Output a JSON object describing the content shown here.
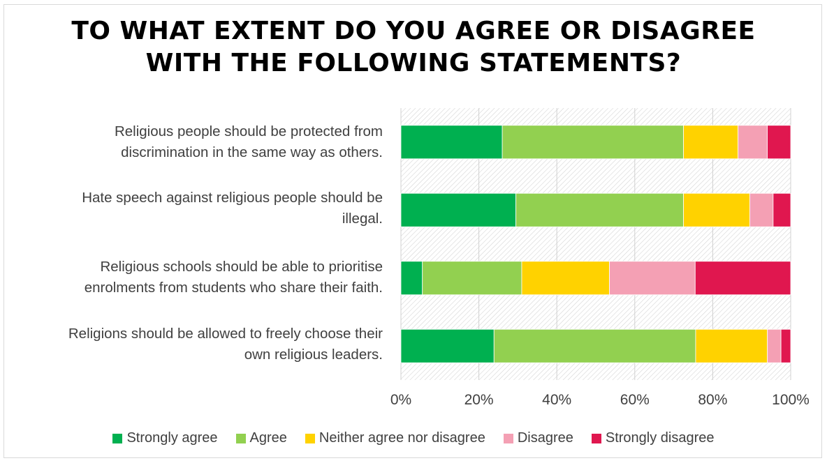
{
  "chart_data": {
    "type": "bar",
    "orientation": "horizontal",
    "stacked": "percent",
    "title_lines": [
      "To what extent do you agree or disagree",
      "with the following statements?"
    ],
    "categories": [
      [
        "Religious people should be protected from",
        "discrimination in the same way as others."
      ],
      [
        "Hate speech against religious people should be",
        "illegal."
      ],
      [
        "Religious schools should be able to prioritise",
        "enrolments from students who share their faith."
      ],
      [
        "Religions should be allowed to freely choose their",
        "own religious leaders."
      ]
    ],
    "series": [
      {
        "name": "Strongly agree",
        "color": "#00b050",
        "values": [
          26,
          29.5,
          5.5,
          24
        ]
      },
      {
        "name": "Agree",
        "color": "#92d050",
        "values": [
          46.5,
          43,
          25.5,
          52
        ]
      },
      {
        "name": "Neither agree nor disagree",
        "color": "#ffd200",
        "values": [
          14,
          17,
          22.5,
          18.5
        ]
      },
      {
        "name": "Disagree",
        "color": "#f4a0b4",
        "values": [
          7.5,
          6,
          22,
          3.5
        ]
      },
      {
        "name": "Strongly disagree",
        "color": "#e0174f",
        "values": [
          6,
          4.5,
          24.5,
          2.5
        ]
      }
    ],
    "xlim": [
      0,
      100
    ],
    "x_ticks": [
      "0%",
      "20%",
      "40%",
      "60%",
      "80%",
      "100%"
    ],
    "grid": true,
    "legend_position": "bottom"
  }
}
